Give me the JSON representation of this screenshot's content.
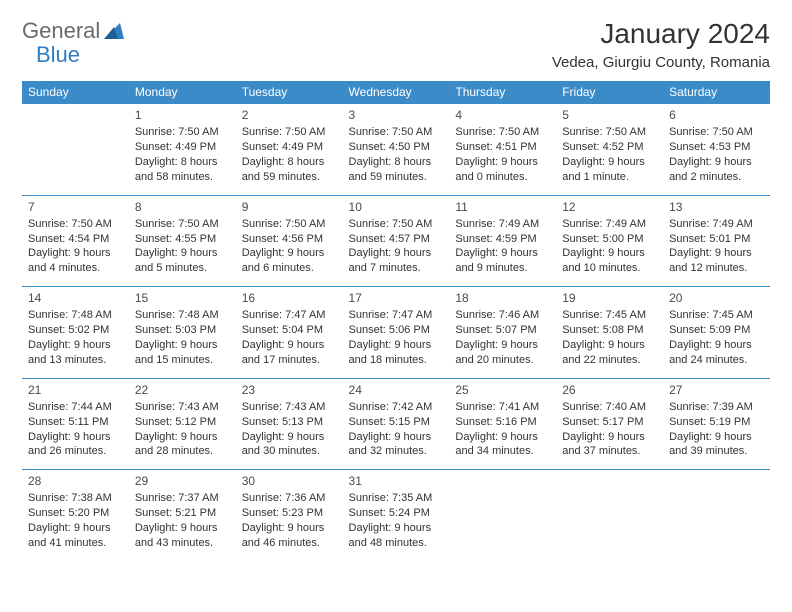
{
  "logo": {
    "text1": "General",
    "text2": "Blue",
    "text1_color": "#6b6b6b",
    "text2_color": "#2f7fc2",
    "icon_color": "#2f7fc2"
  },
  "title": "January 2024",
  "location": "Vedea, Giurgiu County, Romania",
  "day_headers": [
    "Sunday",
    "Monday",
    "Tuesday",
    "Wednesday",
    "Thursday",
    "Friday",
    "Saturday"
  ],
  "colors": {
    "header_bg": "#3b8bc9",
    "header_text": "#ffffff",
    "row_border": "#3b8bc9",
    "body_text": "#333333",
    "background": "#ffffff"
  },
  "fonts": {
    "title_size": 28,
    "location_size": 15,
    "header_size": 12,
    "daynum_size": 12,
    "body_size": 11
  },
  "weeks": [
    [
      {
        "num": "",
        "lines": []
      },
      {
        "num": "1",
        "lines": [
          "Sunrise: 7:50 AM",
          "Sunset: 4:49 PM",
          "Daylight: 8 hours and 58 minutes."
        ]
      },
      {
        "num": "2",
        "lines": [
          "Sunrise: 7:50 AM",
          "Sunset: 4:49 PM",
          "Daylight: 8 hours and 59 minutes."
        ]
      },
      {
        "num": "3",
        "lines": [
          "Sunrise: 7:50 AM",
          "Sunset: 4:50 PM",
          "Daylight: 8 hours and 59 minutes."
        ]
      },
      {
        "num": "4",
        "lines": [
          "Sunrise: 7:50 AM",
          "Sunset: 4:51 PM",
          "Daylight: 9 hours and 0 minutes."
        ]
      },
      {
        "num": "5",
        "lines": [
          "Sunrise: 7:50 AM",
          "Sunset: 4:52 PM",
          "Daylight: 9 hours and 1 minute."
        ]
      },
      {
        "num": "6",
        "lines": [
          "Sunrise: 7:50 AM",
          "Sunset: 4:53 PM",
          "Daylight: 9 hours and 2 minutes."
        ]
      }
    ],
    [
      {
        "num": "7",
        "lines": [
          "Sunrise: 7:50 AM",
          "Sunset: 4:54 PM",
          "Daylight: 9 hours and 4 minutes."
        ]
      },
      {
        "num": "8",
        "lines": [
          "Sunrise: 7:50 AM",
          "Sunset: 4:55 PM",
          "Daylight: 9 hours and 5 minutes."
        ]
      },
      {
        "num": "9",
        "lines": [
          "Sunrise: 7:50 AM",
          "Sunset: 4:56 PM",
          "Daylight: 9 hours and 6 minutes."
        ]
      },
      {
        "num": "10",
        "lines": [
          "Sunrise: 7:50 AM",
          "Sunset: 4:57 PM",
          "Daylight: 9 hours and 7 minutes."
        ]
      },
      {
        "num": "11",
        "lines": [
          "Sunrise: 7:49 AM",
          "Sunset: 4:59 PM",
          "Daylight: 9 hours and 9 minutes."
        ]
      },
      {
        "num": "12",
        "lines": [
          "Sunrise: 7:49 AM",
          "Sunset: 5:00 PM",
          "Daylight: 9 hours and 10 minutes."
        ]
      },
      {
        "num": "13",
        "lines": [
          "Sunrise: 7:49 AM",
          "Sunset: 5:01 PM",
          "Daylight: 9 hours and 12 minutes."
        ]
      }
    ],
    [
      {
        "num": "14",
        "lines": [
          "Sunrise: 7:48 AM",
          "Sunset: 5:02 PM",
          "Daylight: 9 hours and 13 minutes."
        ]
      },
      {
        "num": "15",
        "lines": [
          "Sunrise: 7:48 AM",
          "Sunset: 5:03 PM",
          "Daylight: 9 hours and 15 minutes."
        ]
      },
      {
        "num": "16",
        "lines": [
          "Sunrise: 7:47 AM",
          "Sunset: 5:04 PM",
          "Daylight: 9 hours and 17 minutes."
        ]
      },
      {
        "num": "17",
        "lines": [
          "Sunrise: 7:47 AM",
          "Sunset: 5:06 PM",
          "Daylight: 9 hours and 18 minutes."
        ]
      },
      {
        "num": "18",
        "lines": [
          "Sunrise: 7:46 AM",
          "Sunset: 5:07 PM",
          "Daylight: 9 hours and 20 minutes."
        ]
      },
      {
        "num": "19",
        "lines": [
          "Sunrise: 7:45 AM",
          "Sunset: 5:08 PM",
          "Daylight: 9 hours and 22 minutes."
        ]
      },
      {
        "num": "20",
        "lines": [
          "Sunrise: 7:45 AM",
          "Sunset: 5:09 PM",
          "Daylight: 9 hours and 24 minutes."
        ]
      }
    ],
    [
      {
        "num": "21",
        "lines": [
          "Sunrise: 7:44 AM",
          "Sunset: 5:11 PM",
          "Daylight: 9 hours and 26 minutes."
        ]
      },
      {
        "num": "22",
        "lines": [
          "Sunrise: 7:43 AM",
          "Sunset: 5:12 PM",
          "Daylight: 9 hours and 28 minutes."
        ]
      },
      {
        "num": "23",
        "lines": [
          "Sunrise: 7:43 AM",
          "Sunset: 5:13 PM",
          "Daylight: 9 hours and 30 minutes."
        ]
      },
      {
        "num": "24",
        "lines": [
          "Sunrise: 7:42 AM",
          "Sunset: 5:15 PM",
          "Daylight: 9 hours and 32 minutes."
        ]
      },
      {
        "num": "25",
        "lines": [
          "Sunrise: 7:41 AM",
          "Sunset: 5:16 PM",
          "Daylight: 9 hours and 34 minutes."
        ]
      },
      {
        "num": "26",
        "lines": [
          "Sunrise: 7:40 AM",
          "Sunset: 5:17 PM",
          "Daylight: 9 hours and 37 minutes."
        ]
      },
      {
        "num": "27",
        "lines": [
          "Sunrise: 7:39 AM",
          "Sunset: 5:19 PM",
          "Daylight: 9 hours and 39 minutes."
        ]
      }
    ],
    [
      {
        "num": "28",
        "lines": [
          "Sunrise: 7:38 AM",
          "Sunset: 5:20 PM",
          "Daylight: 9 hours and 41 minutes."
        ]
      },
      {
        "num": "29",
        "lines": [
          "Sunrise: 7:37 AM",
          "Sunset: 5:21 PM",
          "Daylight: 9 hours and 43 minutes."
        ]
      },
      {
        "num": "30",
        "lines": [
          "Sunrise: 7:36 AM",
          "Sunset: 5:23 PM",
          "Daylight: 9 hours and 46 minutes."
        ]
      },
      {
        "num": "31",
        "lines": [
          "Sunrise: 7:35 AM",
          "Sunset: 5:24 PM",
          "Daylight: 9 hours and 48 minutes."
        ]
      },
      {
        "num": "",
        "lines": []
      },
      {
        "num": "",
        "lines": []
      },
      {
        "num": "",
        "lines": []
      }
    ]
  ]
}
